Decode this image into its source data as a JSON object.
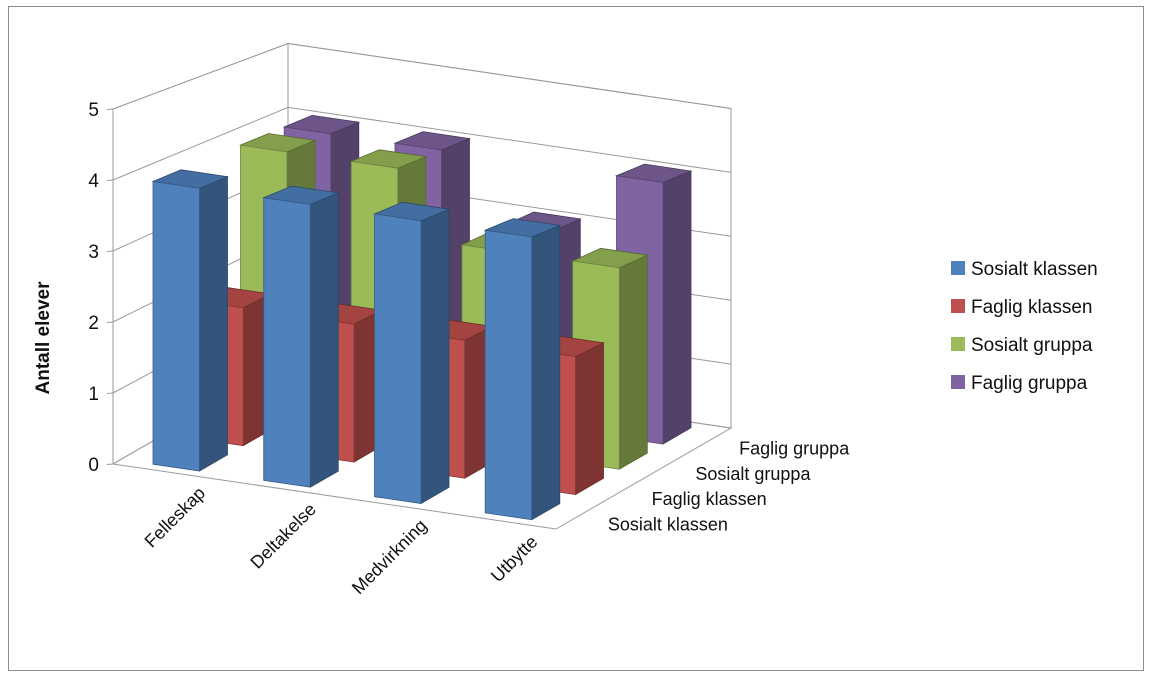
{
  "chart_data": {
    "type": "bar",
    "subtype": "3d-column",
    "categories": [
      "Felleskap",
      "Deltakelse",
      "Medvirkning",
      "Utbytte"
    ],
    "series": [
      {
        "name": "Sosialt klassen",
        "color": "#4f81bd",
        "values": [
          4,
          4,
          4,
          4
        ]
      },
      {
        "name": "Faglig klassen",
        "color": "#c0504d",
        "values": [
          2,
          2,
          2,
          2
        ]
      },
      {
        "name": "Sosialt gruppa",
        "color": "#9bbb59",
        "values": [
          4,
          4,
          3,
          3
        ]
      },
      {
        "name": "Faglig gruppa",
        "color": "#8064a2",
        "values": [
          4,
          4,
          3,
          4
        ]
      }
    ],
    "depth_labels": [
      "Sosialt klassen",
      "Faglig klassen",
      "Sosialt gruppa",
      "Faglig gruppa"
    ],
    "ylabel": "Antall elever",
    "xlabel": "",
    "title": "",
    "ylim": [
      0,
      5
    ],
    "yticks": [
      "0",
      "1",
      "2",
      "3",
      "4",
      "5"
    ],
    "grid": true,
    "legend_position": "right"
  }
}
